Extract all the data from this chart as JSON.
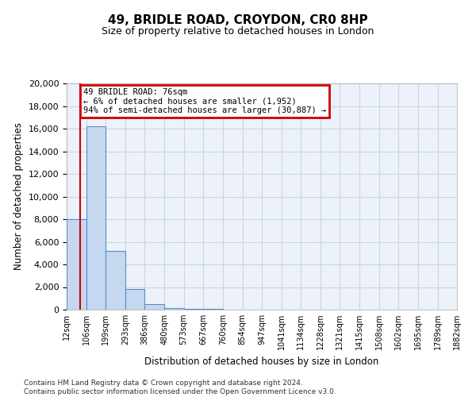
{
  "title1": "49, BRIDLE ROAD, CROYDON, CR0 8HP",
  "title2": "Size of property relative to detached houses in London",
  "xlabel": "Distribution of detached houses by size in London",
  "ylabel": "Number of detached properties",
  "bar_color": "#c5d8f0",
  "bar_edge_color": "#5b8cc5",
  "grid_color": "#c8d4e8",
  "background_color": "#edf2fa",
  "annotation_text": "49 BRIDLE ROAD: 76sqm\n← 6% of detached houses are smaller (1,952)\n94% of semi-detached houses are larger (30,887) →",
  "property_sqm": 76,
  "red_line_color": "#cc0000",
  "annotation_box_color": "#cc0000",
  "footer": "Contains HM Land Registry data © Crown copyright and database right 2024.\nContains public sector information licensed under the Open Government Licence v3.0.",
  "bin_labels": [
    "12sqm",
    "106sqm",
    "199sqm",
    "293sqm",
    "386sqm",
    "480sqm",
    "573sqm",
    "667sqm",
    "760sqm",
    "854sqm",
    "947sqm",
    "1041sqm",
    "1134sqm",
    "1228sqm",
    "1321sqm",
    "1415sqm",
    "1508sqm",
    "1602sqm",
    "1695sqm",
    "1789sqm",
    "1882sqm"
  ],
  "bin_edges": [
    12,
    106,
    199,
    293,
    386,
    480,
    573,
    667,
    760,
    854,
    947,
    1041,
    1134,
    1228,
    1321,
    1415,
    1508,
    1602,
    1695,
    1789,
    1882
  ],
  "bar_heights": [
    8000,
    16200,
    5200,
    1800,
    500,
    150,
    100,
    80,
    0,
    0,
    0,
    0,
    0,
    0,
    0,
    0,
    0,
    0,
    0,
    0
  ],
  "ylim": [
    0,
    20000
  ],
  "yticks": [
    0,
    2000,
    4000,
    6000,
    8000,
    10000,
    12000,
    14000,
    16000,
    18000,
    20000
  ]
}
